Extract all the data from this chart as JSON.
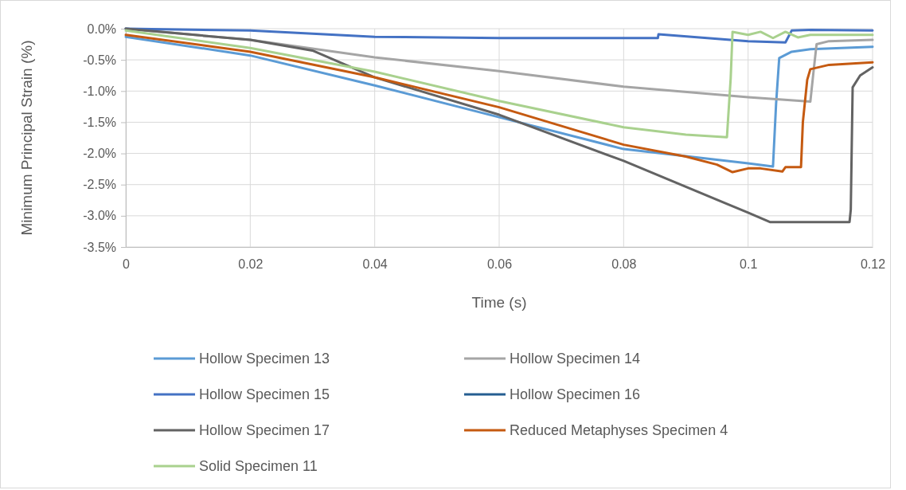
{
  "chart_data": {
    "type": "line",
    "xlabel": "Time (s)",
    "ylabel": "Minimum Principal Strain (%)",
    "xlim": [
      0,
      0.12
    ],
    "xticks": [
      0,
      0.02,
      0.04,
      0.06,
      0.08,
      0.1,
      0.12
    ],
    "ylim": [
      -3.5,
      0
    ],
    "yticks": [
      {
        "value": -3.5,
        "label": "-3.5%"
      },
      {
        "value": -3,
        "label": "-3.0%"
      },
      {
        "value": -2.5,
        "label": "-2.5%"
      },
      {
        "value": -2,
        "label": "-2.0%"
      },
      {
        "value": -1.5,
        "label": "-1.5%"
      },
      {
        "value": -1,
        "label": "-1.0%"
      },
      {
        "value": -0.5,
        "label": "-0.5%"
      },
      {
        "value": 0,
        "label": "0.0%"
      }
    ],
    "grid": true,
    "legend": "bottom",
    "marker": "none",
    "line_style": "solid",
    "series": [
      {
        "name": "Hollow Specimen 13",
        "color": "#5b9bd5",
        "x": [
          0,
          0.02,
          0.04,
          0.06,
          0.08,
          0.1,
          0.104,
          0.1045,
          0.105,
          0.107,
          0.11,
          0.12
        ],
        "values": [
          -0.13,
          -0.43,
          -0.91,
          -1.42,
          -1.93,
          -2.16,
          -2.21,
          -1.2,
          -0.47,
          -0.37,
          -0.33,
          -0.29
        ]
      },
      {
        "name": "Hollow Specimen 14",
        "color": "#a5a5a5",
        "x": [
          0,
          0.02,
          0.04,
          0.06,
          0.08,
          0.1,
          0.11,
          0.1105,
          0.111,
          0.113,
          0.12
        ],
        "values": [
          0,
          -0.18,
          -0.46,
          -0.68,
          -0.93,
          -1.1,
          -1.17,
          -0.7,
          -0.25,
          -0.2,
          -0.18
        ]
      },
      {
        "name": "Hollow Specimen 15",
        "color": "#4472c4",
        "x": [
          0,
          0.02,
          0.04,
          0.06,
          0.08,
          0.0855,
          0.0856,
          0.1,
          0.106,
          0.107,
          0.11,
          0.12
        ],
        "values": [
          0,
          -0.03,
          -0.13,
          -0.15,
          -0.15,
          -0.15,
          -0.09,
          -0.2,
          -0.22,
          -0.03,
          -0.02,
          -0.03
        ]
      },
      {
        "name": "Hollow Specimen 16",
        "color": "#255e91"
      },
      {
        "name": "Hollow Specimen 17",
        "color": "#636363",
        "x": [
          0,
          0.02,
          0.03,
          0.04,
          0.06,
          0.08,
          0.1,
          0.1035,
          0.1163,
          0.1165,
          0.1168,
          0.118,
          0.12
        ],
        "values": [
          0,
          -0.18,
          -0.35,
          -0.78,
          -1.38,
          -2.12,
          -2.95,
          -3.1,
          -3.1,
          -2.9,
          -0.94,
          -0.75,
          -0.62
        ]
      },
      {
        "name": "Reduced Metaphyses Specimen 4",
        "color": "#c55a11",
        "x": [
          0,
          0.02,
          0.04,
          0.06,
          0.08,
          0.09,
          0.095,
          0.0975,
          0.1,
          0.102,
          0.1055,
          0.106,
          0.1085,
          0.1088,
          0.1095,
          0.11,
          0.113,
          0.12
        ],
        "values": [
          -0.1,
          -0.37,
          -0.78,
          -1.26,
          -1.86,
          -2.05,
          -2.18,
          -2.3,
          -2.24,
          -2.24,
          -2.29,
          -2.22,
          -2.22,
          -1.5,
          -0.82,
          -0.65,
          -0.58,
          -0.54
        ]
      },
      {
        "name": "Solid Specimen 11",
        "color": "#a9d18e",
        "x": [
          0,
          0.02,
          0.04,
          0.06,
          0.08,
          0.09,
          0.0966,
          0.0972,
          0.0975,
          0.1,
          0.102,
          0.104,
          0.106,
          0.108,
          0.11,
          0.12
        ],
        "values": [
          -0.03,
          -0.31,
          -0.69,
          -1.16,
          -1.58,
          -1.7,
          -1.74,
          -0.8,
          -0.05,
          -0.1,
          -0.05,
          -0.15,
          -0.05,
          -0.14,
          -0.1,
          -0.1
        ]
      }
    ]
  }
}
